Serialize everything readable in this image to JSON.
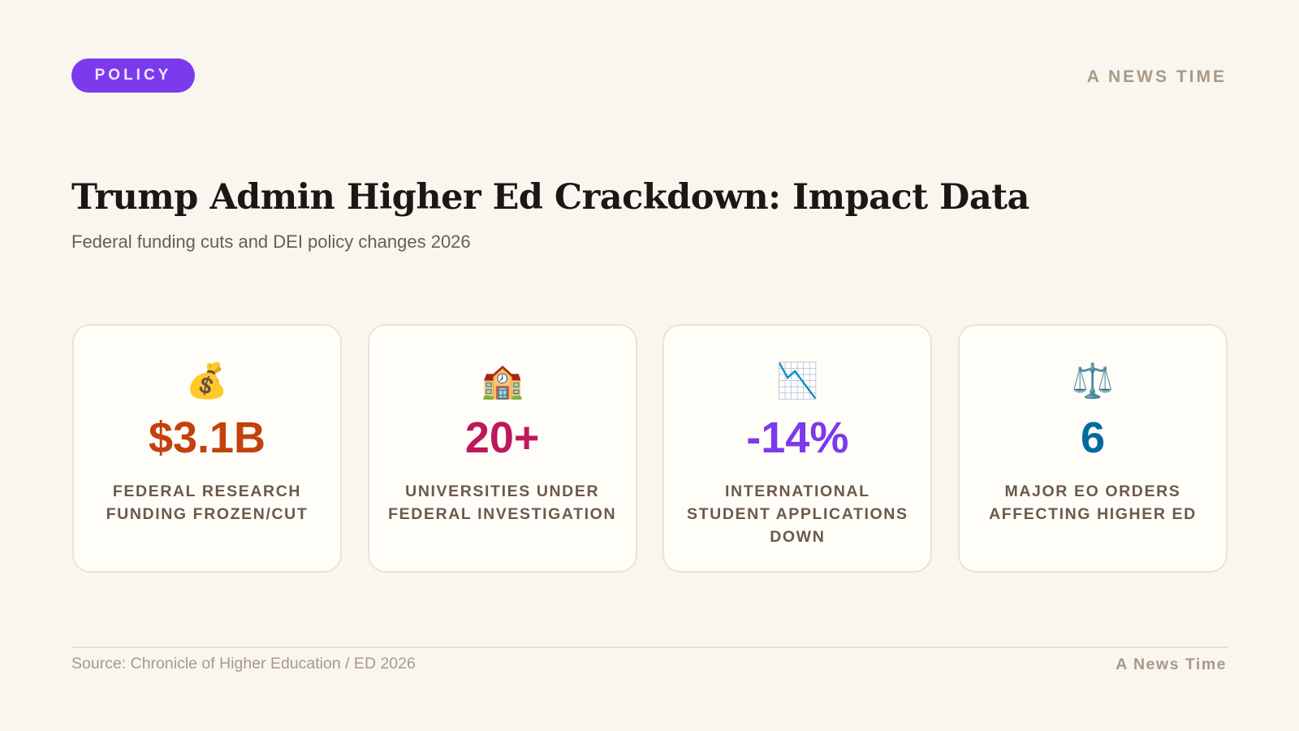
{
  "header": {
    "category": "POLICY",
    "brand": "A NEWS TIME",
    "category_color": "#7c3aed"
  },
  "title": "Trump Admin Higher Ed Crackdown: Impact Data",
  "subtitle": "Federal funding cuts and DEI policy changes 2026",
  "cards": [
    {
      "icon": "money-bag-icon",
      "glyph": "💰",
      "value": "$3.1B",
      "label": "FEDERAL RESEARCH FUNDING FROZEN/CUT",
      "color": "#c2410c"
    },
    {
      "icon": "school-icon",
      "glyph": "🏫",
      "value": "20+",
      "label": "UNIVERSITIES UNDER FEDERAL INVESTIGATION",
      "color": "#be185d"
    },
    {
      "icon": "chart-decreasing-icon",
      "glyph": "📉",
      "value": "-14%",
      "label": "INTERNATIONAL STUDENT APPLICATIONS DOWN",
      "color": "#7c3aed"
    },
    {
      "icon": "balance-scale-icon",
      "glyph": "⚖️",
      "value": "6",
      "label": "MAJOR EO ORDERS AFFECTING HIGHER ED",
      "color": "#0369a1"
    }
  ],
  "footer": {
    "source": "Source: Chronicle of Higher Education / ED 2026",
    "brand": "A News Time"
  }
}
